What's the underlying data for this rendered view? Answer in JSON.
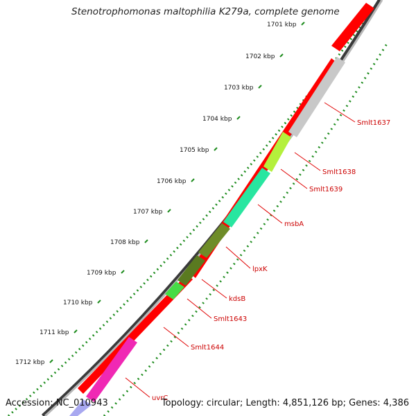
{
  "title": "Stenotrophomonas maltophilia K279a, complete genome",
  "footer": {
    "accession": "Accession: NC_010943",
    "summary": "Topology: circular; Length: 4,851,126 bp; Genes: 4,386"
  },
  "ticks": [
    {
      "label": "1701 kbp"
    },
    {
      "label": "1702 kbp"
    },
    {
      "label": "1703 kbp"
    },
    {
      "label": "1704 kbp"
    },
    {
      "label": "1705 kbp"
    },
    {
      "label": "1706 kbp"
    },
    {
      "label": "1707 kbp"
    },
    {
      "label": "1708 kbp"
    },
    {
      "label": "1709 kbp"
    },
    {
      "label": "1710 kbp"
    },
    {
      "label": "1711 kbp"
    },
    {
      "label": "1712 kbp"
    }
  ],
  "genes": [
    {
      "label": "Smlt1637",
      "color": "#c8c8c8"
    },
    {
      "label": "Smlt1638",
      "color": "#b4f03c"
    },
    {
      "label": "Smlt1639",
      "color": "#28f0a0"
    },
    {
      "label": "msbA",
      "color": "#28e6a0"
    },
    {
      "label": "lpxK",
      "color": "#6e8c28"
    },
    {
      "label": "kdsB",
      "color": "#5a7a20"
    },
    {
      "label": "Smlt1643",
      "color": "#46dc46"
    },
    {
      "label": "Smlt1644",
      "color": "#46dc46"
    },
    {
      "label": "uvrC",
      "color": "#f028b4"
    }
  ],
  "colors": {
    "cds_forward": "#ff0000",
    "backbone": "#8c8c8c",
    "gc_dots": "#1e8c1e",
    "label_line": "#e00000"
  }
}
